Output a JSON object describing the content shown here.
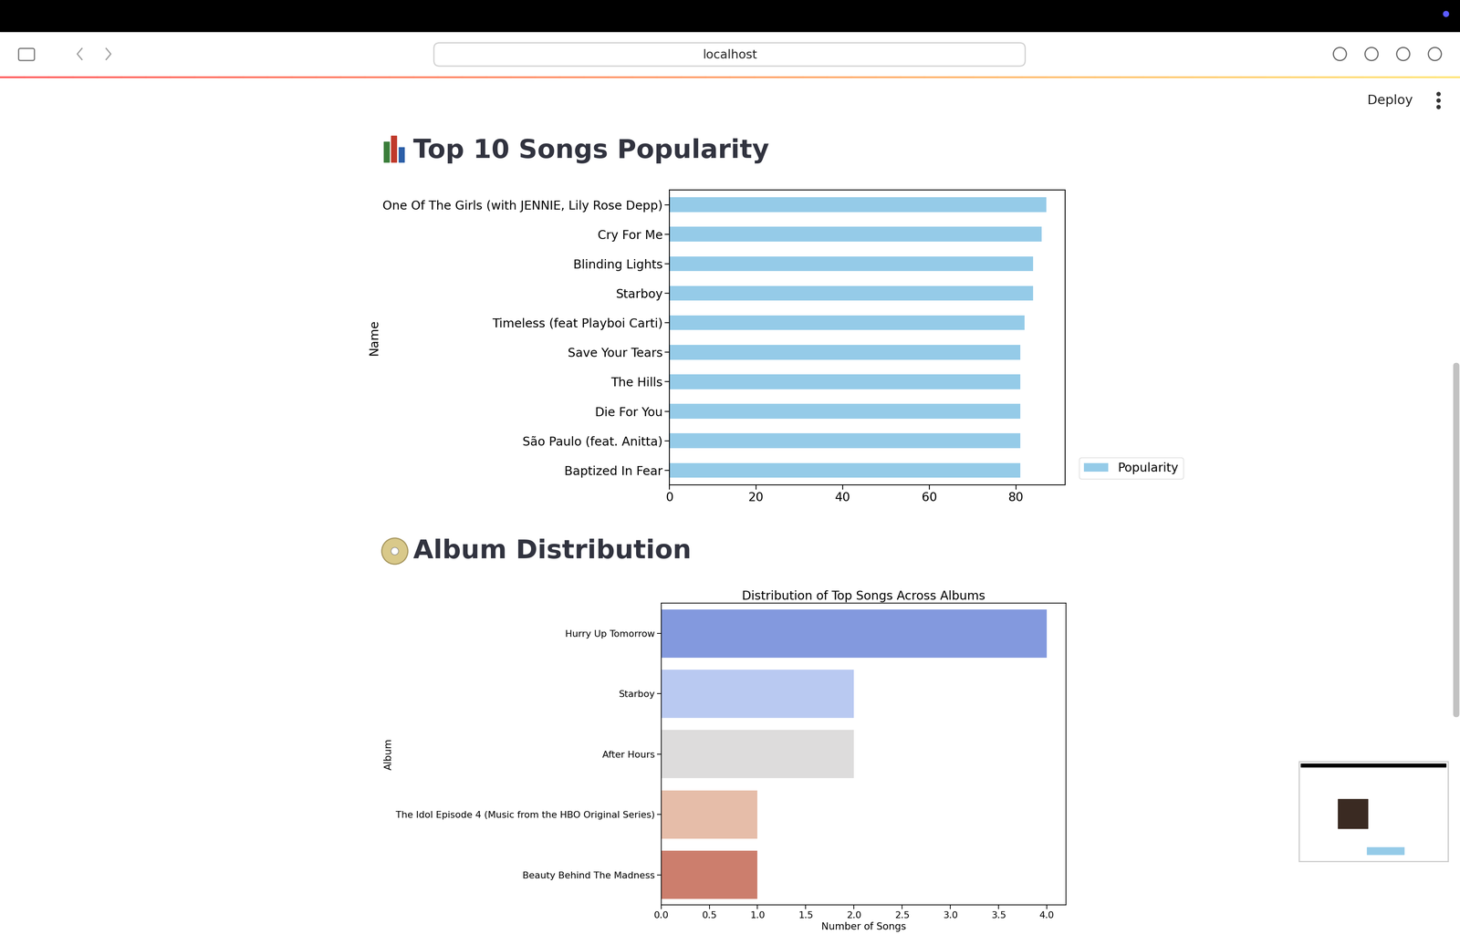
{
  "page": {
    "url": "localhost",
    "deploy": "Deploy",
    "headings": [
      "Top 10 Songs Popularity",
      "Album Distribution"
    ]
  },
  "chart_data": [
    {
      "type": "bar",
      "orientation": "horizontal",
      "ylabel": "Name",
      "categories": [
        "One Of The Girls (with JENNIE, Lily Rose Depp)",
        "Cry For Me",
        "Blinding Lights",
        "Starboy",
        "Timeless (feat Playboi Carti)",
        "Save Your Tears",
        "The Hills",
        "Die For You",
        "São Paulo (feat. Anitta)",
        "Baptized In Fear"
      ],
      "series": [
        {
          "name": "Popularity",
          "color": "#95cbe8",
          "values": [
            87,
            86,
            84,
            84,
            82,
            81,
            81,
            81,
            81,
            81
          ]
        }
      ],
      "xlim": [
        0,
        91.4
      ],
      "xticks": [
        0,
        20,
        40,
        60,
        80
      ],
      "legend": "lower right",
      "grid": false
    },
    {
      "type": "bar",
      "orientation": "horizontal",
      "title": "Distribution of Top Songs Across Albums",
      "xlabel": "Number of Songs",
      "ylabel": "Album",
      "categories": [
        "Hurry Up Tomorrow",
        "Starboy",
        "After Hours",
        "The Idol Episode 4 (Music from the HBO Original Series)",
        "Beauty Behind The Madness"
      ],
      "values": [
        4,
        2,
        2,
        1,
        1
      ],
      "colors": [
        "#8399de",
        "#b9c9f1",
        "#dddcdc",
        "#e6bda9",
        "#cc7e6d"
      ],
      "xlim": [
        0,
        4.2
      ],
      "xticks": [
        {
          "value": 0,
          "label": "0.0"
        },
        0.5,
        {
          "value": 1,
          "label": "1.0"
        },
        1.5,
        {
          "value": 2,
          "label": "2.0"
        },
        2.5,
        {
          "value": 3,
          "label": "3.0"
        },
        3.5,
        {
          "value": 4,
          "label": "4.0"
        }
      ],
      "grid": false
    }
  ]
}
